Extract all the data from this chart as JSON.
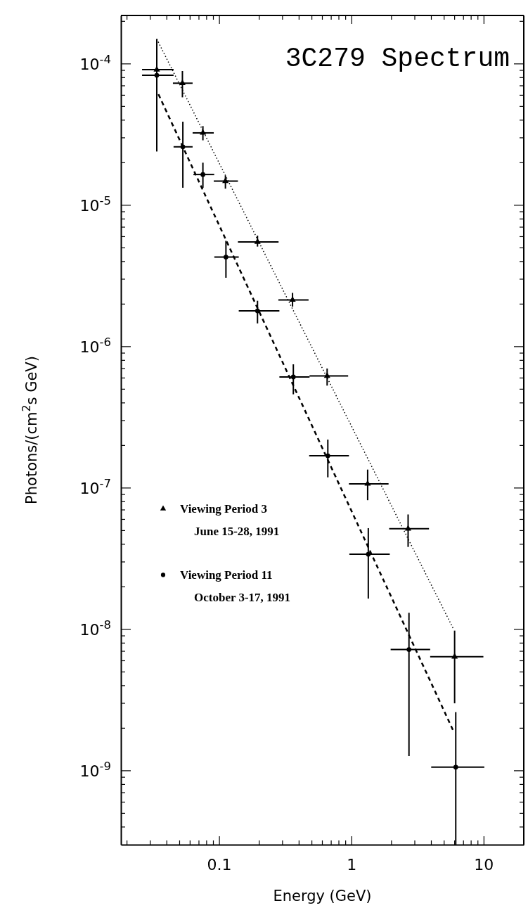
{
  "chart_data": {
    "type": "scatter",
    "title": "3C279 Spectrum",
    "xlabel": "Energy (GeV)",
    "ylabel": "Photons/(cm$^{2}$s GeV)",
    "log": "xy",
    "xlim": [
      0.018,
      20
    ],
    "ylim": [
      3e-10,
      0.00022
    ],
    "xticks": [
      {
        "value": 0.02,
        "label": null
      },
      {
        "value": 0.03,
        "label": null
      },
      {
        "value": 0.04,
        "label": null
      },
      {
        "value": 0.05,
        "label": null
      },
      {
        "value": 0.06,
        "label": null
      },
      {
        "value": 0.07,
        "label": null
      },
      {
        "value": 0.08,
        "label": null
      },
      {
        "value": 0.09,
        "label": null
      },
      {
        "value": 0.1,
        "label": "0.1"
      },
      {
        "value": 0.2,
        "label": null
      },
      {
        "value": 0.3,
        "label": null
      },
      {
        "value": 0.4,
        "label": null
      },
      {
        "value": 0.5,
        "label": null
      },
      {
        "value": 0.6,
        "label": null
      },
      {
        "value": 0.7,
        "label": null
      },
      {
        "value": 0.8,
        "label": null
      },
      {
        "value": 0.9,
        "label": null
      },
      {
        "value": 1,
        "label": "1"
      },
      {
        "value": 2,
        "label": null
      },
      {
        "value": 3,
        "label": null
      },
      {
        "value": 4,
        "label": null
      },
      {
        "value": 5,
        "label": null
      },
      {
        "value": 6,
        "label": null
      },
      {
        "value": 7,
        "label": null
      },
      {
        "value": 8,
        "label": null
      },
      {
        "value": 9,
        "label": null
      },
      {
        "value": 10,
        "label": "10"
      },
      {
        "value": 20,
        "label": null
      }
    ],
    "yticks": [
      {
        "value": 4e-10,
        "label": null
      },
      {
        "value": 5e-10,
        "label": null
      },
      {
        "value": 6e-10,
        "label": null
      },
      {
        "value": 7e-10,
        "label": null
      },
      {
        "value": 8e-10,
        "label": null
      },
      {
        "value": 9e-10,
        "label": null
      },
      {
        "value": 1e-09,
        "label": "10$^{-9}$"
      },
      {
        "value": 2e-09,
        "label": null
      },
      {
        "value": 3e-09,
        "label": null
      },
      {
        "value": 4e-09,
        "label": null
      },
      {
        "value": 5e-09,
        "label": null
      },
      {
        "value": 6e-09,
        "label": null
      },
      {
        "value": 7e-09,
        "label": null
      },
      {
        "value": 8e-09,
        "label": null
      },
      {
        "value": 9e-09,
        "label": null
      },
      {
        "value": 1e-08,
        "label": "10$^{-8}$"
      },
      {
        "value": 2e-08,
        "label": null
      },
      {
        "value": 3e-08,
        "label": null
      },
      {
        "value": 4e-08,
        "label": null
      },
      {
        "value": 5e-08,
        "label": null
      },
      {
        "value": 6e-08,
        "label": null
      },
      {
        "value": 7e-08,
        "label": null
      },
      {
        "value": 8e-08,
        "label": null
      },
      {
        "value": 9e-08,
        "label": null
      },
      {
        "value": 1e-07,
        "label": "10$^{-7}$"
      },
      {
        "value": 2e-07,
        "label": null
      },
      {
        "value": 3e-07,
        "label": null
      },
      {
        "value": 4e-07,
        "label": null
      },
      {
        "value": 5e-07,
        "label": null
      },
      {
        "value": 6e-07,
        "label": null
      },
      {
        "value": 7e-07,
        "label": null
      },
      {
        "value": 8e-07,
        "label": null
      },
      {
        "value": 9e-07,
        "label": null
      },
      {
        "value": 1e-06,
        "label": "10$^{-6}$"
      },
      {
        "value": 2e-06,
        "label": null
      },
      {
        "value": 3e-06,
        "label": null
      },
      {
        "value": 4e-06,
        "label": null
      },
      {
        "value": 5e-06,
        "label": null
      },
      {
        "value": 6e-06,
        "label": null
      },
      {
        "value": 7e-06,
        "label": null
      },
      {
        "value": 8e-06,
        "label": null
      },
      {
        "value": 9e-06,
        "label": null
      },
      {
        "value": 1e-05,
        "label": "10$^{-5}$"
      },
      {
        "value": 2e-05,
        "label": null
      },
      {
        "value": 3e-05,
        "label": null
      },
      {
        "value": 4e-05,
        "label": null
      },
      {
        "value": 5e-05,
        "label": null
      },
      {
        "value": 6e-05,
        "label": null
      },
      {
        "value": 7e-05,
        "label": null
      },
      {
        "value": 8e-05,
        "label": null
      },
      {
        "value": 9e-05,
        "label": null
      },
      {
        "value": 0.0001,
        "label": "10$^{-4}$"
      },
      {
        "value": 0.0002,
        "label": null
      }
    ],
    "grid": false,
    "legend": "center left",
    "series": [
      {
        "name": "Viewing Period 3\nJune 15-28, 1991",
        "color": "#000000",
        "marker": "triangle",
        "x": [
          0.0336,
          0.0525,
          0.075,
          0.111,
          0.194,
          0.357,
          0.652,
          1.32,
          2.67,
          6.0
        ],
        "values": [
          9.1e-05,
          7.3e-05,
          3.25e-05,
          1.48e-05,
          5.5e-06,
          2.14e-06,
          6.2e-07,
          1.07e-07,
          5.15e-08,
          6.4e-09
        ],
        "errors": [
          null,
          [
            5.8e-05,
            8.9e-05
          ],
          [
            2.88e-05,
            3.63e-05
          ],
          [
            1.31e-05,
            1.62e-05
          ],
          [
            5.1e-06,
            6.1e-06
          ],
          [
            1.92e-06,
            2.4e-06
          ],
          [
            5.3e-07,
            7e-07
          ],
          [
            8.2e-08,
            1.35e-07
          ],
          [
            3.83e-08,
            6.5e-08
          ],
          [
            3e-09,
            9.8e-09
          ]
        ],
        "xerrors": [
          [
            0.026,
            0.045
          ],
          [
            0.0445,
            0.0627
          ],
          [
            0.0627,
            0.0906
          ],
          [
            0.0906,
            0.138
          ],
          [
            0.138,
            0.28
          ],
          [
            0.279,
            0.472
          ],
          [
            0.48,
            0.94
          ],
          [
            0.953,
            1.9
          ],
          [
            1.92,
            3.84
          ],
          [
            3.92,
            9.9
          ]
        ]
      },
      {
        "name": "Viewing Period 11\nOctober 3-17, 1991",
        "color": "#000000",
        "marker": "circle",
        "x": [
          0.0336,
          0.0529,
          0.075,
          0.112,
          0.194,
          0.362,
          0.66,
          1.335,
          2.71,
          6.12
        ],
        "values": [
          8.3e-05,
          2.59e-05,
          1.65e-05,
          4.3e-06,
          1.79e-06,
          6.1e-07,
          1.69e-07,
          3.4e-08,
          7.2e-09,
          1.06e-09
        ],
        "errors": [
          [
            2.4e-05,
            0.00015
          ],
          [
            1.33e-05,
            3.9e-05
          ],
          [
            1.33e-05,
            2e-05
          ],
          [
            3.07e-06,
            5.6e-06
          ],
          [
            1.46e-06,
            2.11e-06
          ],
          [
            4.6e-07,
            7.5e-07
          ],
          [
            1.19e-07,
            2.2e-07
          ],
          [
            1.65e-08,
            5.2e-08
          ],
          [
            1.27e-09,
            1.31e-08
          ],
          [
            3e-10,
            2.6e-09
          ]
        ],
        "xerrors": [
          [
            0.026,
            0.045
          ],
          [
            0.045,
            0.0627
          ],
          [
            0.0636,
            0.0913
          ],
          [
            0.0915,
            0.14
          ],
          [
            0.14,
            0.284
          ],
          [
            0.284,
            0.48
          ],
          [
            0.477,
            0.953
          ],
          [
            0.96,
            1.94
          ],
          [
            1.97,
            3.92
          ],
          [
            3.99,
            10.06
          ]
        ]
      },
      {
        "type": "line",
        "color": "#000000",
        "line_style": "dotted",
        "x": [
          0.0336,
          5.9
        ],
        "values": [
          0.00015,
          1e-08
        ]
      },
      {
        "type": "line",
        "color": "#000000",
        "line_style": "dashed",
        "x": [
          0.0346,
          5.89
        ],
        "values": [
          6.1e-05,
          1.9e-09
        ]
      }
    ]
  }
}
